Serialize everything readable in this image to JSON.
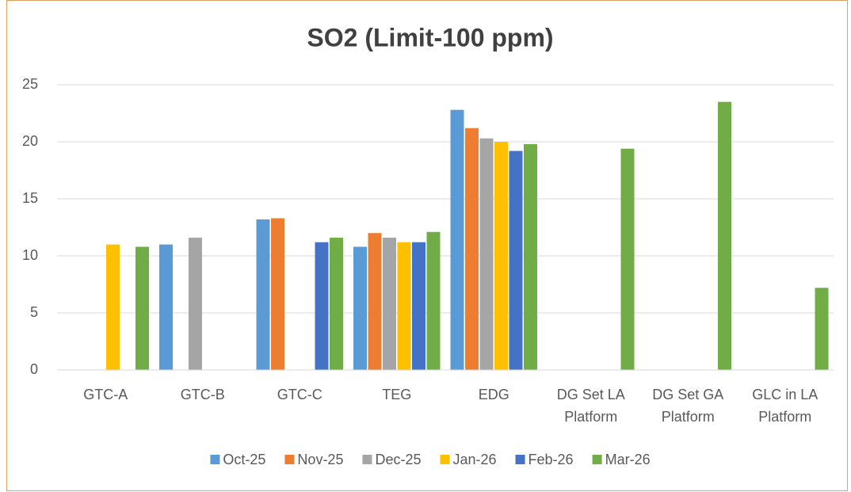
{
  "chart_data": {
    "type": "bar",
    "title": "SO2 (Limit-100 ppm)",
    "categories": [
      "GTC-A",
      "GTC-B",
      "GTC-C",
      "TEG",
      "EDG",
      "DG Set LA Platform",
      "DG Set GA Platform",
      "GLC in LA Platform"
    ],
    "series": [
      {
        "name": "Oct-25",
        "color": "#5b9bd5",
        "values": [
          null,
          11,
          13.2,
          10.8,
          22.8,
          null,
          null,
          null
        ]
      },
      {
        "name": "Nov-25",
        "color": "#ed7d31",
        "values": [
          null,
          null,
          13.3,
          12,
          21.2,
          null,
          null,
          null
        ]
      },
      {
        "name": "Dec-25",
        "color": "#a5a5a5",
        "values": [
          null,
          11.6,
          null,
          11.6,
          20.3,
          null,
          null,
          null
        ]
      },
      {
        "name": "Jan-26",
        "color": "#ffc000",
        "values": [
          11,
          null,
          null,
          11.2,
          20,
          null,
          null,
          null
        ]
      },
      {
        "name": "Feb-26",
        "color": "#4472c4",
        "values": [
          null,
          null,
          11.2,
          11.2,
          19.2,
          null,
          null,
          null
        ]
      },
      {
        "name": "Mar-26",
        "color": "#70ad47",
        "values": [
          10.8,
          null,
          11.6,
          12.1,
          19.8,
          19.4,
          23.5,
          7.2
        ]
      }
    ],
    "ylim": [
      0,
      25
    ],
    "yticks": [
      0,
      5,
      10,
      15,
      20,
      25
    ],
    "grid": true,
    "legend": "bottom"
  }
}
